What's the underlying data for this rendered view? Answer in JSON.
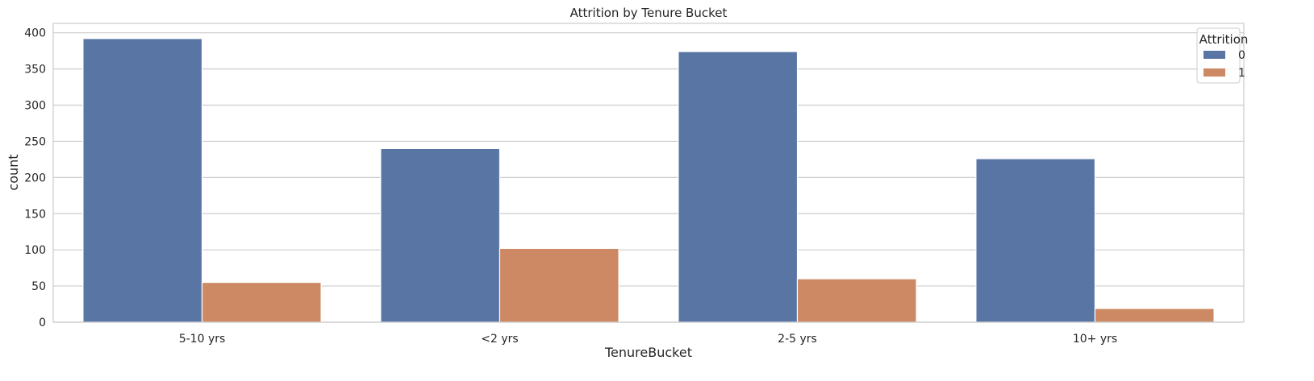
{
  "chart_data": {
    "type": "bar",
    "title": "Attrition by Tenure Bucket",
    "xlabel": "TenureBucket",
    "ylabel": "count",
    "categories": [
      "5-10 yrs",
      "<2 yrs",
      "2-5 yrs",
      "10+ yrs"
    ],
    "series": [
      {
        "name": "0",
        "color": "#5875a4",
        "values": [
          392,
          240,
          374,
          226
        ]
      },
      {
        "name": "1",
        "color": "#cc8963",
        "values": [
          55,
          102,
          60,
          19
        ]
      }
    ],
    "ylim": [
      0,
      413
    ],
    "yticks": [
      0,
      50,
      100,
      150,
      200,
      250,
      300,
      350,
      400
    ],
    "grid": true,
    "legend": {
      "title": "Attrition",
      "placement": "top-right"
    }
  }
}
